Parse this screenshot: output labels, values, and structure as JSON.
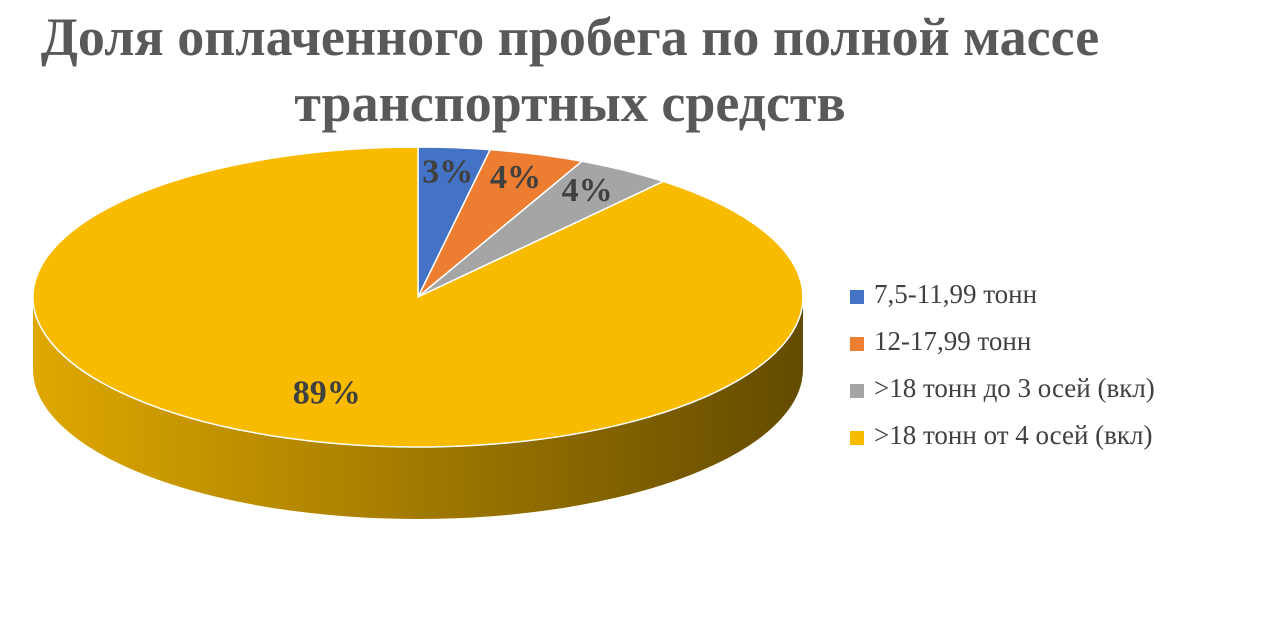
{
  "chart_data": {
    "type": "pie3d",
    "title": "Доля оплаченного пробега по полной массе транспортных средств",
    "categories": [
      "7,5-11,99 тонн",
      "12-17,99 тонн",
      ">18 тонн до 3 осей (вкл)",
      ">18 тонн от 4 осей (вкл)"
    ],
    "values": [
      3,
      4,
      4,
      89
    ],
    "value_labels": [
      "3%",
      "4%",
      "4%",
      "89%"
    ],
    "colors": [
      "#4472c4",
      "#ed7d31",
      "#a5a5a5",
      "#f8bb00"
    ],
    "legend": "right"
  }
}
